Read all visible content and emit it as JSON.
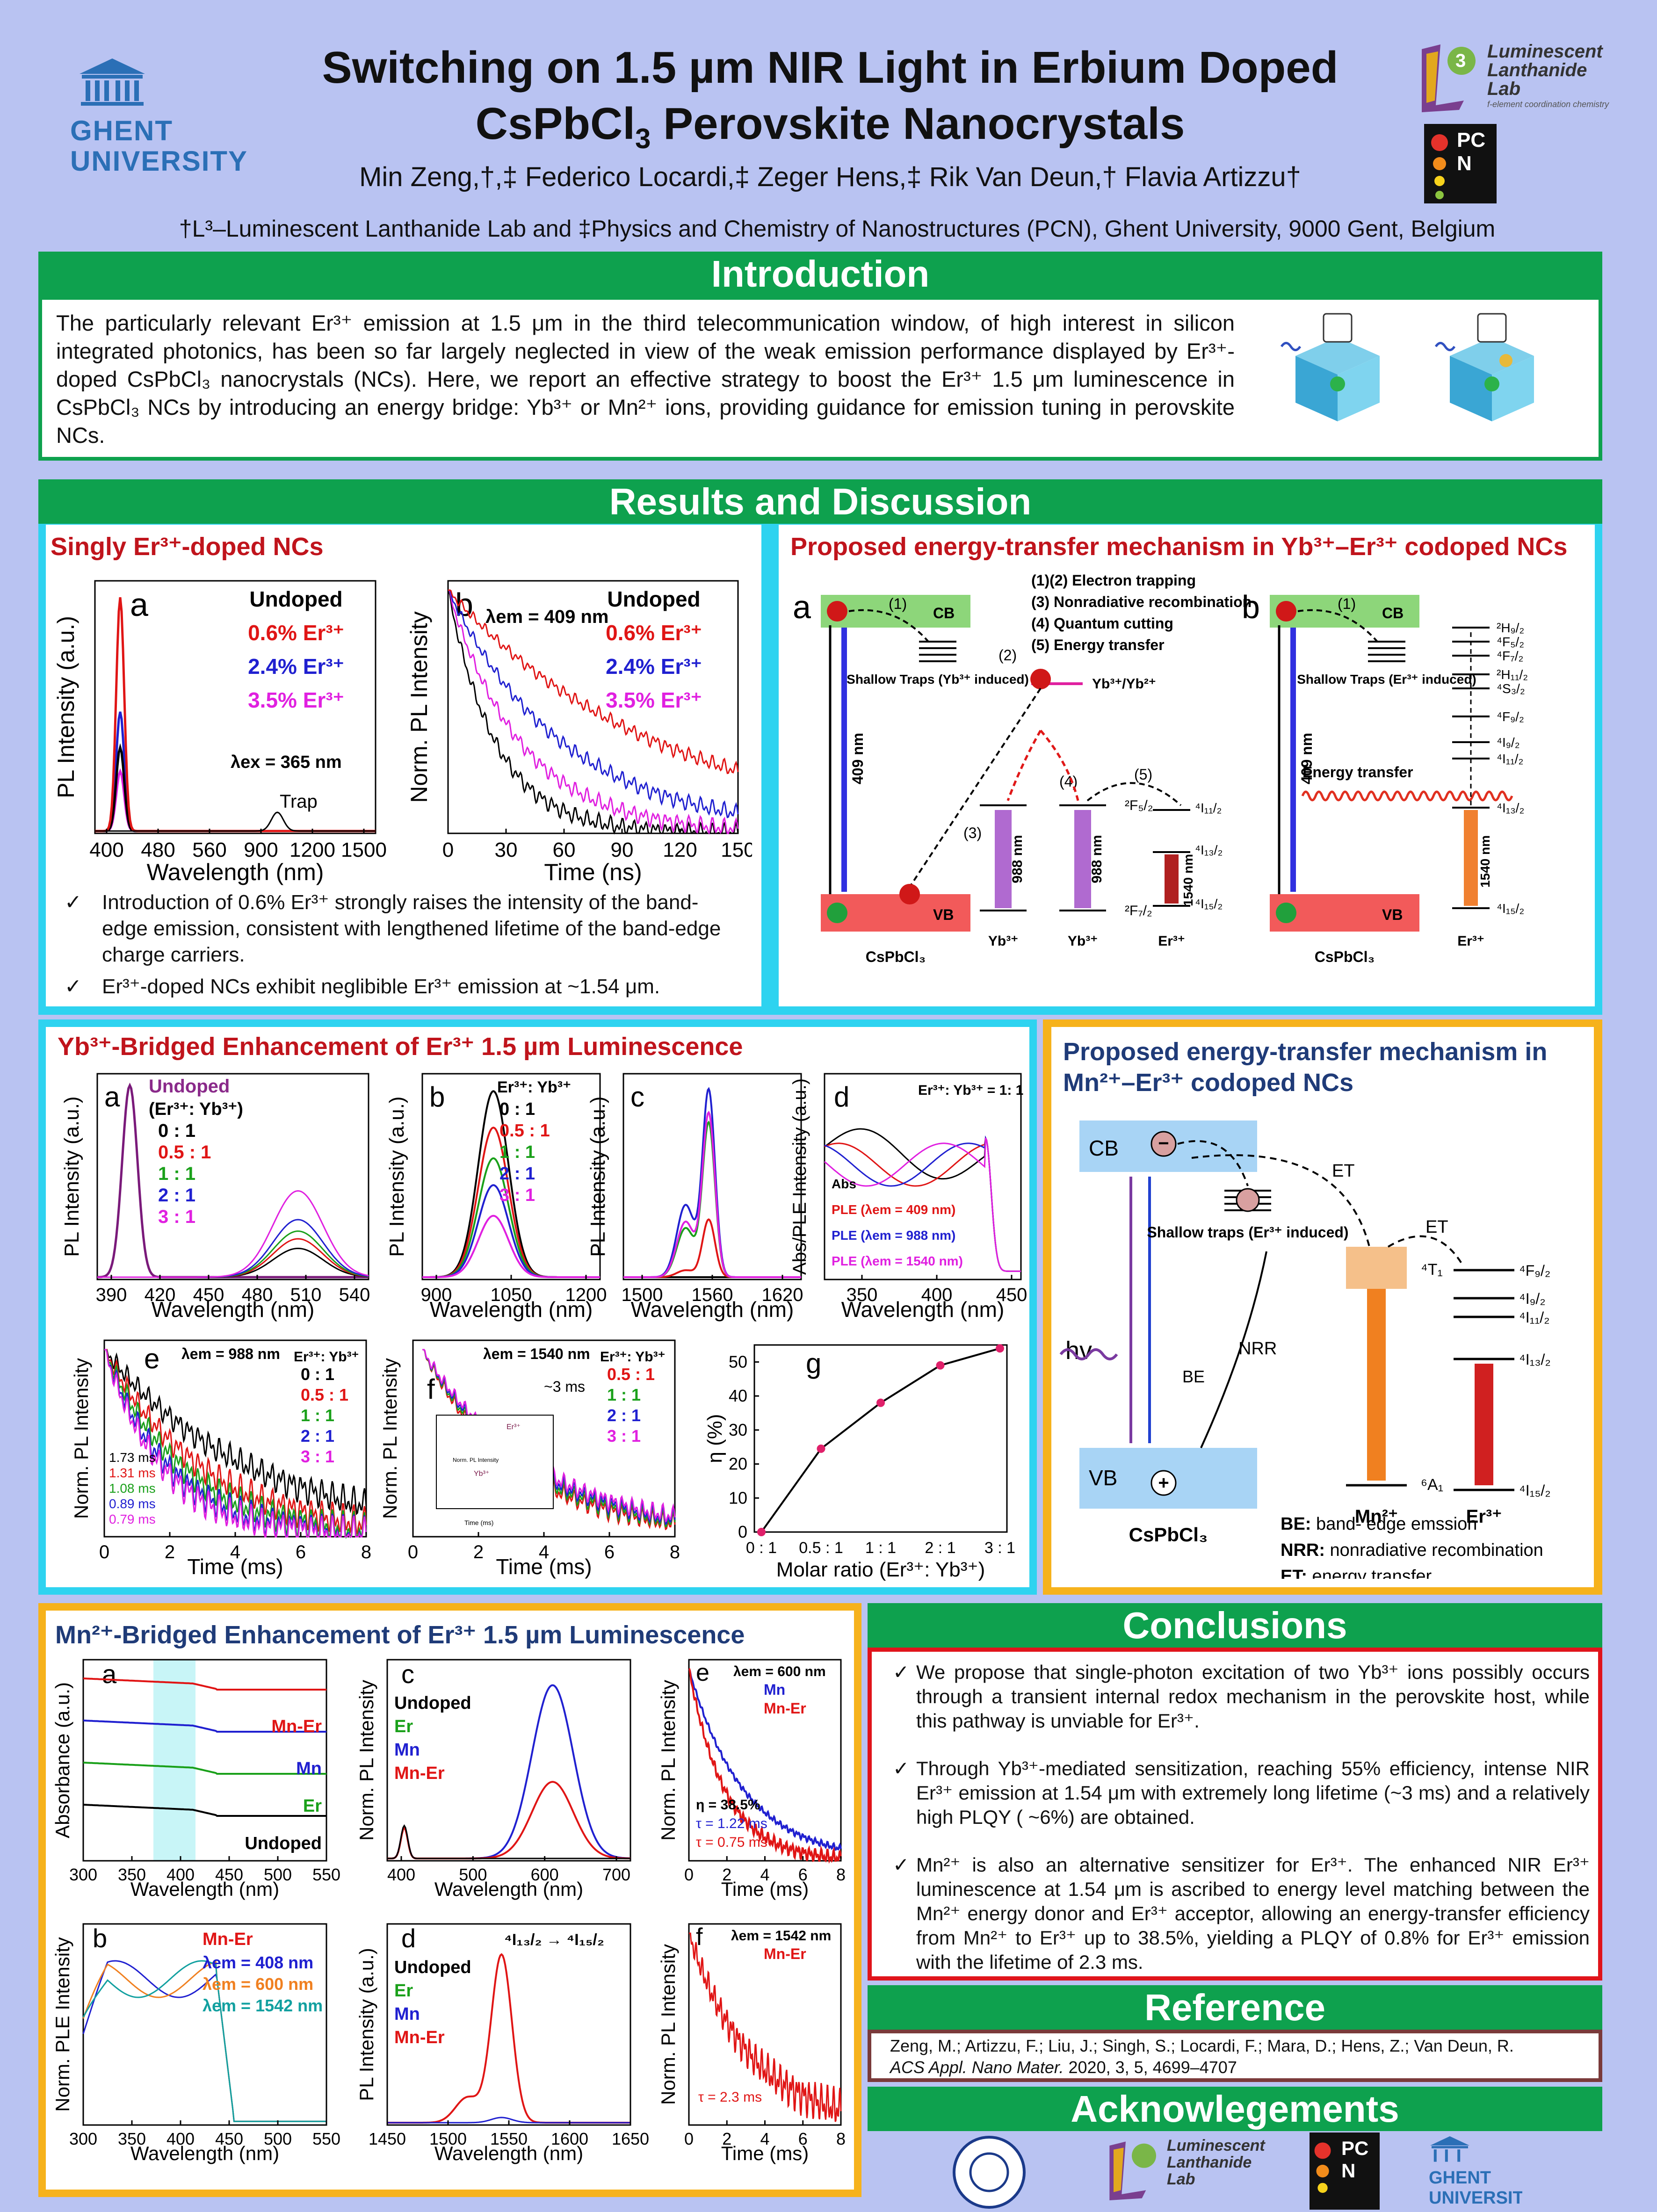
{
  "header": {
    "title_line1": "Switching on 1.5 µm NIR Light in Erbium Doped",
    "title_line2_a": "CsPbCl",
    "title_line2_sub": "3",
    "title_line2_b": " Perovskite Nanocrystals",
    "authors": "Min Zeng,†,‡  Federico Locardi,‡ Zeger Hens,‡ Rik Van Deun,† Flavia Artizzu†",
    "affiliation": "†L³–Luminescent Lanthanide Lab and ‡Physics and Chemistry of Nanostructures (PCN), Ghent University, 9000 Gent, Belgium",
    "ghent_line1": "GHENT",
    "ghent_line2": "UNIVERSITY",
    "l3_logo_text": "Luminescent Lanthanide Lab",
    "l3_tagline": "f-element coordination chemistry",
    "pcn_logo": "PCN"
  },
  "introduction": {
    "banner": "Introduction",
    "text": "The particularly relevant Er³⁺ emission at 1.5 μm in the third telecommunication window, of high interest in silicon integrated photonics, has been so far largely neglected in view of the weak emission performance displayed by Er³⁺-doped CsPbCl₃ nanocrystals (NCs). Here, we report an effective strategy to boost the Er³⁺ 1.5 μm luminescence in CsPbCl₃ NCs by introducing an energy bridge: Yb³⁺ or Mn²⁺ ions, providing guidance for emission tuning in perovskite NCs."
  },
  "results": {
    "banner": "Results and Discussion",
    "singly": {
      "title": "Singly Er³⁺-doped NCs",
      "bullet1": "Introduction of 0.6% Er³⁺ strongly raises the intensity of the band-edge emission, consistent with lengthened lifetime of the band-edge charge carriers.",
      "bullet2": "Er³⁺-doped NCs exhibit neglibible Er³⁺ emission at ~1.54 μm.",
      "legend": [
        "Undoped",
        "0.6% Er³⁺",
        "2.4% Er³⁺",
        "3.5% Er³⁺"
      ],
      "lambda_ex": "λex = 365 nm",
      "lambda_em": "λem = 409 nm",
      "trap": "Trap"
    },
    "mechanism_yb": {
      "title": "Proposed energy-transfer mechanism in Yb³⁺–Er³⁺ codoped NCs",
      "steps": [
        "(1)(2) Electron trapping",
        "(3) Nonradiative recombination",
        "(4) Quantum cutting",
        "(5) Energy transfer"
      ],
      "shallow_a": "Shallow Traps (Yb³⁺ induced)",
      "shallow_b": "Shallow Traps (Er³⁺ induced)",
      "energy_transfer": "Energy transfer",
      "host": "CsPbCl₃",
      "cb": "CB",
      "vb": "VB",
      "yb_redox": "Yb³⁺/Yb²⁺",
      "nm409": "409 nm",
      "nm988": "988 nm",
      "nm1540": "1540 nm",
      "ion_yb": "Yb³⁺",
      "ion_er": "Er³⁺",
      "levels_er": [
        "²H₉/₂",
        "⁴F₅/₂",
        "⁴F₇/₂",
        "²H₁₁/₂",
        "⁴S₃/₂",
        "⁴F₉/₂",
        "⁴I₉/₂",
        "⁴I₁₁/₂",
        "⁴I₁₃/₂",
        "⁴I₁₅/₂"
      ],
      "yb_top": "²F₅/₂",
      "yb_bot": "²F₇/₂"
    },
    "yb_bridged": {
      "title": "Yb³⁺-Bridged Enhancement of Er³⁺ 1.5 µm Luminescence",
      "ratios": [
        "0 : 1",
        "0.5 : 1",
        "1 : 1",
        "2 : 1",
        "3 : 1"
      ],
      "ratio_header": "Er³⁺: Yb³⁺",
      "lifetimes": [
        "1.73 ms",
        "1.31 ms",
        "1.08 ms",
        "0.89 ms",
        "0.79 ms"
      ],
      "d_title": "Er³⁺: Yb³⁺ = 1: 1",
      "d_legend": [
        "Abs",
        "PLE (λem = 409 nm)",
        "PLE (λem = 988 nm)",
        "PLE (λem = 1540 nm)"
      ],
      "e_lambda": "λem = 988 nm",
      "f_lambda": "λem = 1540 nm",
      "f_tau": "~3 ms"
    },
    "mechanism_mn": {
      "title": "Proposed energy-transfer mechanism in Mn²⁺–Er³⁺ codoped NCs",
      "cb": "CB",
      "vb": "VB",
      "et": "ET",
      "be": "BE",
      "nrr": "NRR",
      "hv": "hv",
      "shallow": "Shallow traps (Er³⁺ induced)",
      "host": "CsPbCl₃",
      "mn": "Mn²⁺",
      "er": "Er³⁺",
      "levels": [
        "⁴F₉/₂",
        "⁴I₉/₂",
        "⁴I₁₁/₂",
        "⁴I₁₃/₂",
        "⁴I₁₅/₂"
      ],
      "mn_top": "⁴T₁",
      "mn_bot": "⁶A₁",
      "legend": [
        {
          "k": "BE:",
          "v": " band- edge emssion"
        },
        {
          "k": "NRR:",
          "v": " nonradiative recombination"
        },
        {
          "k": "ET:",
          "v": " energy transfer"
        }
      ]
    },
    "mn_bridged": {
      "title": "Mn²⁺-Bridged Enhancement of Er³⁺ 1.5 µm Luminescence",
      "a_labels": [
        "Mn-Er",
        "Mn",
        "Er",
        "Undoped"
      ],
      "b_labels": [
        "Mn-Er",
        "λem = 408 nm",
        "λem = 600 nm",
        "λem = 1542 nm"
      ],
      "cd_labels": [
        "Undoped",
        "Er",
        "Mn",
        "Mn-Er"
      ],
      "d_trans": "⁴I₁₃/₂ → ⁴I₁₅/₂",
      "e_lambda": "λem = 600 nm",
      "e_eta": "η = 38.5%",
      "e_tau1": "τ = 1.22 ms",
      "e_tau2": "τ = 0.75 ms",
      "f_lambda": "λem = 1542 nm",
      "f_tau": "τ = 2.3 ms"
    }
  },
  "conclusions": {
    "banner": "Conclusions",
    "items": [
      "We propose that single-photon excitation of two Yb³⁺ ions possibly occurs through a transient internal redox mechanism in the perovskite host, while this pathway is unviable for Er³⁺.",
      "Through Yb³⁺-mediated sensitization, reaching 55% efficiency, intense NIR Er³⁺ emission at 1.54 μm with extremely long lifetime (~3 ms) and a relatively high PLQY ( ~6%) are obtained.",
      "Mn²⁺ is also an alternative sensitizer for Er³⁺. The enhanced NIR Er³⁺ luminescence at 1.54 μm is ascribed to energy level matching between the Mn²⁺ energy donor and Er³⁺ acceptor, allowing an energy-transfer efficiency from Mn²⁺ to Er³⁺ up to 38.5%, yielding a PLQY of 0.8% for Er³⁺ emission with the lifetime of 2.3 ms."
    ]
  },
  "reference": {
    "banner": "Reference",
    "line1": "Zeng, M.; Artizzu, F.; Liu, J.; Singh, S.; Locardi, F.; Mara, D.; Hens, Z.; Van Deun, R.",
    "line2_journal": "ACS Appl. Nano Mater.",
    "line2_rest": " 2020, 3, 5, 4699–4707"
  },
  "acknowledgements": {
    "banner": "Acknowlegements"
  },
  "chart_data": [
    {
      "id": "singly-a",
      "type": "line",
      "xlabel": "Wavelength (nm)",
      "ylabel": "PL Intensity (a.u.)",
      "x_ticks": [
        "400",
        "480",
        "560",
        "900",
        "1200",
        "1500"
      ],
      "series": [
        {
          "name": "Undoped",
          "color": "#000000",
          "peak": 410,
          "height": 0.35
        },
        {
          "name": "0.6% Er³⁺",
          "color": "#e01515",
          "peak": 410,
          "height": 0.98
        },
        {
          "name": "2.4% Er³⁺",
          "color": "#2020d0",
          "peak": 410,
          "height": 0.5
        },
        {
          "name": "3.5% Er³⁺",
          "color": "#e020e0",
          "peak": 410,
          "height": 0.25
        }
      ]
    },
    {
      "id": "singly-b",
      "type": "line",
      "xlabel": "Time (ns)",
      "ylabel": "Norm. PL Intensity",
      "xlim": [
        0,
        150
      ],
      "x_ticks": [
        "0",
        "30",
        "60",
        "90",
        "120",
        "150"
      ],
      "series": [
        {
          "name": "Undoped",
          "color": "#000000",
          "tau": 25
        },
        {
          "name": "0.6% Er³⁺",
          "color": "#e01515",
          "tau": 110
        },
        {
          "name": "2.4% Er³⁺",
          "color": "#2020d0",
          "tau": 60
        },
        {
          "name": "3.5% Er³⁺",
          "color": "#e020e0",
          "tau": 38
        }
      ]
    },
    {
      "id": "yb-g",
      "type": "line",
      "xlabel": "Molar ratio (Er³⁺: Yb³⁺)",
      "ylabel": "η (%)",
      "categories": [
        "0 : 1",
        "0.5 : 1",
        "1 : 1",
        "2 : 1",
        "3 : 1"
      ],
      "values": [
        0,
        24.5,
        38,
        49,
        54
      ],
      "ylim": [
        0,
        55
      ],
      "y_ticks": [
        "0",
        "10",
        "20",
        "30",
        "40",
        "50"
      ]
    }
  ]
}
